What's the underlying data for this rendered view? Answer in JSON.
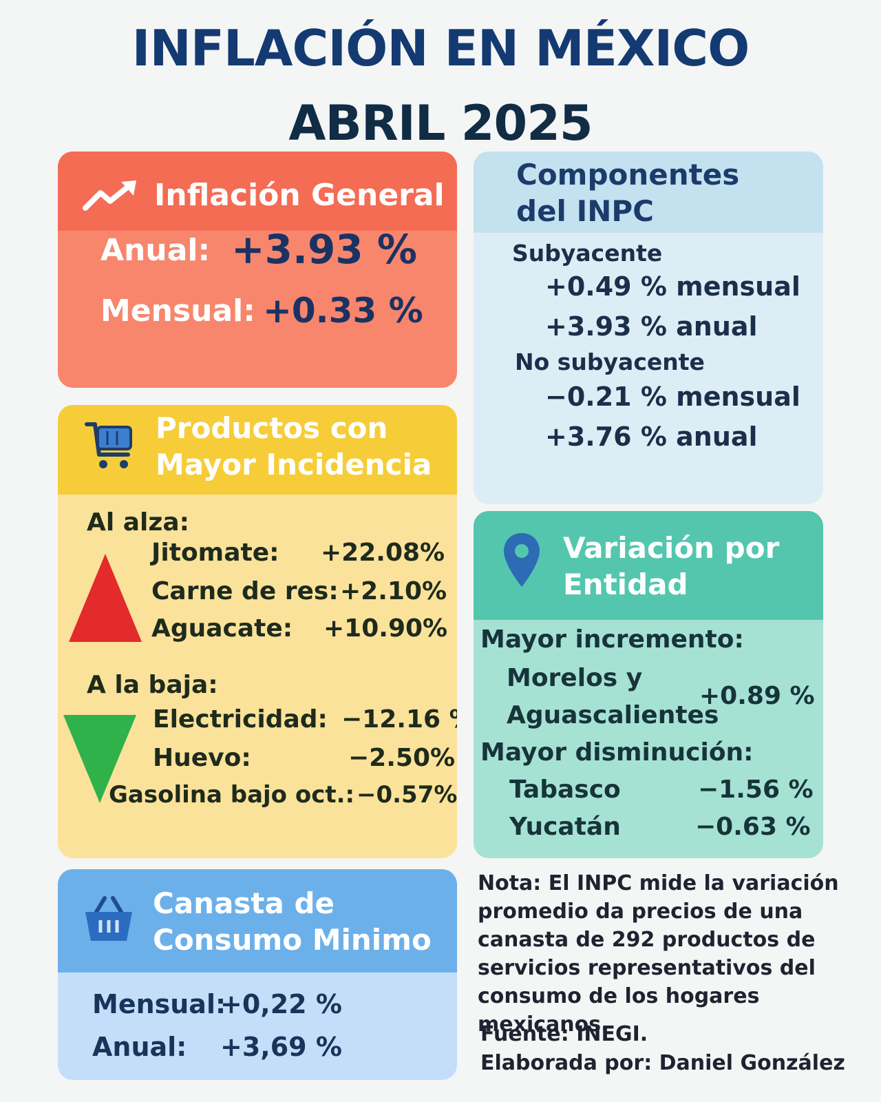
{
  "header": {
    "title": "INFLACIÓN EN MÉXICO",
    "subtitle": "ABRIL 2025"
  },
  "general": {
    "icon": "trend-up-icon",
    "title": "Inflación General",
    "anual_label": "Anual:",
    "anual_value": "+3.93 %",
    "mensual_label": "Mensual:",
    "mensual_value": "+0.33 %"
  },
  "componentes": {
    "title_line1": "Componentes",
    "title_line2": "del INPC",
    "subyacente_label": "Subyacente",
    "subyacente_mensual": "+0.49 % mensual",
    "subyacente_anual": "+3.93 % anual",
    "no_subyacente_label": "No subyacente",
    "no_subyacente_mensual": "−0.21 % mensual",
    "no_subyacente_anual": "+3.76 % anual"
  },
  "productos": {
    "icon": "shopping-cart-icon",
    "title_line1": "Productos con",
    "title_line2": "Mayor Incidencia",
    "alza_label": "Al alza:",
    "alza_items": [
      {
        "name": "Jitomate:",
        "value": "+22.08%"
      },
      {
        "name": "Carne de res:",
        "value": "+2.10%"
      },
      {
        "name": "Aguacate:",
        "value": "+10.90%"
      }
    ],
    "baja_label": "A la baja:",
    "baja_items": [
      {
        "name": "Electricidad:",
        "value": "−12.16 %"
      },
      {
        "name": "Huevo:",
        "value": "−2.50%"
      },
      {
        "name": "Gasolina bajo oct.:",
        "value": "−0.57%"
      }
    ],
    "up_color": "#e32b2b",
    "down_color": "#2fb24a"
  },
  "entidad": {
    "icon": "map-pin-icon",
    "title_line1": "Variación por",
    "title_line2": "Entidad",
    "incremento_label": "Mayor incremento:",
    "incremento_name_line1": "Morelos y",
    "incremento_name_line2": "Aguascalientes",
    "incremento_value": "+0.89 %",
    "disminucion_label": "Mayor disminución:",
    "disminucion_items": [
      {
        "name": "Tabasco",
        "value": "−1.56 %"
      },
      {
        "name": "Yucatán",
        "value": "−0.63 %"
      }
    ]
  },
  "canasta": {
    "icon": "basket-icon",
    "title_line1": "Canasta de",
    "title_line2": "Consumo Minimo",
    "mensual_label": "Mensual:",
    "mensual_value": "+0,22 %",
    "anual_label": "Anual:",
    "anual_value": "+3,69 %"
  },
  "nota": {
    "text": "Nota: El INPC mide la variación promedio da precios de una canasta de 292 productos de servicios representativos del consumo de los hogares mexicanos.",
    "fuente": "Fuente: INEGI.",
    "autor": "Elaborada por: Daniel González"
  }
}
